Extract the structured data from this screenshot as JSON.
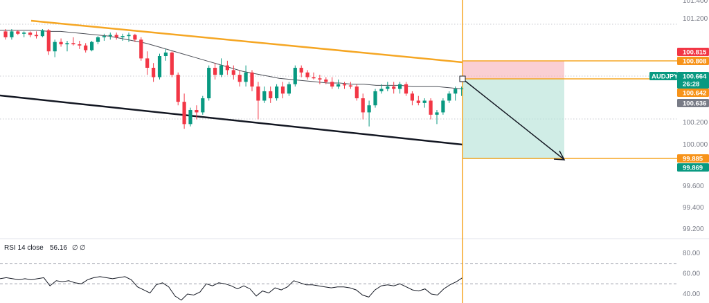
{
  "chart_data": [
    {
      "type": "candlestick",
      "symbol": "AUDJPY",
      "current_price": "100.664",
      "countdown": "26:28",
      "ylim": [
        99.0,
        101.4
      ],
      "y_ticks": [
        "101.400",
        "101.200",
        "100.200",
        "100.000",
        "99.600",
        "99.400",
        "99.200"
      ],
      "price_tags": [
        {
          "label": "100.815",
          "value": 100.815,
          "color": "#f23645"
        },
        {
          "label": "100.808",
          "value": 100.808,
          "color": "#f7931a"
        },
        {
          "label": "100.642",
          "value": 100.642,
          "color": "#f7931a"
        },
        {
          "label": "100.636",
          "value": 100.636,
          "color": "#787b86"
        },
        {
          "label": "99.885",
          "value": 99.885,
          "color": "#f7931a"
        },
        {
          "label": "99.869",
          "value": 99.869,
          "color": "#089981"
        }
      ],
      "candles_ohlc": [
        [
          101.15,
          101.17,
          101.08,
          101.1
        ],
        [
          101.1,
          101.17,
          101.08,
          101.15
        ],
        [
          101.15,
          101.16,
          101.12,
          101.13
        ],
        [
          101.13,
          101.15,
          101.1,
          101.14
        ],
        [
          101.14,
          101.15,
          101.1,
          101.12
        ],
        [
          101.12,
          101.15,
          101.09,
          101.11
        ],
        [
          101.11,
          101.17,
          101.1,
          101.16
        ],
        [
          101.16,
          101.17,
          100.95,
          100.98
        ],
        [
          100.98,
          101.08,
          100.93,
          101.06
        ],
        [
          101.06,
          101.09,
          101.02,
          101.04
        ],
        [
          101.04,
          101.07,
          100.98,
          101.05
        ],
        [
          101.05,
          101.1,
          101.03,
          101.04
        ],
        [
          101.04,
          101.07,
          101.0,
          101.03
        ],
        [
          101.03,
          101.05,
          100.97,
          100.99
        ],
        [
          100.99,
          101.07,
          100.98,
          101.06
        ],
        [
          101.06,
          101.11,
          101.04,
          101.1
        ],
        [
          101.1,
          101.13,
          101.07,
          101.11
        ],
        [
          101.11,
          101.14,
          101.08,
          101.12
        ],
        [
          101.12,
          101.14,
          101.08,
          101.1
        ],
        [
          101.1,
          101.13,
          101.07,
          101.11
        ],
        [
          101.11,
          101.14,
          101.06,
          101.12
        ],
        [
          101.12,
          101.13,
          101.06,
          101.08
        ],
        [
          101.08,
          101.1,
          100.9,
          100.92
        ],
        [
          100.92,
          100.98,
          100.78,
          100.84
        ],
        [
          100.84,
          100.88,
          100.72,
          100.76
        ],
        [
          100.76,
          100.96,
          100.74,
          100.94
        ],
        [
          100.94,
          101.0,
          100.9,
          100.97
        ],
        [
          100.97,
          100.98,
          100.76,
          100.78
        ],
        [
          100.78,
          100.8,
          100.52,
          100.55
        ],
        [
          100.55,
          100.62,
          100.32,
          100.36
        ],
        [
          100.36,
          100.5,
          100.34,
          100.48
        ],
        [
          100.48,
          100.52,
          100.4,
          100.46
        ],
        [
          100.46,
          100.6,
          100.44,
          100.58
        ],
        [
          100.58,
          100.86,
          100.56,
          100.84
        ],
        [
          100.84,
          100.88,
          100.74,
          100.78
        ],
        [
          100.78,
          100.92,
          100.76,
          100.86
        ],
        [
          100.86,
          100.9,
          100.78,
          100.82
        ],
        [
          100.82,
          100.86,
          100.74,
          100.78
        ],
        [
          100.78,
          100.82,
          100.68,
          100.72
        ],
        [
          100.72,
          100.86,
          100.68,
          100.8
        ],
        [
          100.8,
          100.82,
          100.64,
          100.68
        ],
        [
          100.68,
          100.72,
          100.4,
          100.56
        ],
        [
          100.56,
          100.68,
          100.54,
          100.64
        ],
        [
          100.64,
          100.68,
          100.54,
          100.58
        ],
        [
          100.58,
          100.7,
          100.56,
          100.68
        ],
        [
          100.68,
          100.72,
          100.58,
          100.62
        ],
        [
          100.62,
          100.72,
          100.6,
          100.7
        ],
        [
          100.7,
          100.86,
          100.68,
          100.84
        ],
        [
          100.84,
          100.86,
          100.76,
          100.8
        ],
        [
          100.8,
          100.82,
          100.74,
          100.76
        ],
        [
          100.76,
          100.8,
          100.74,
          100.75
        ],
        [
          100.75,
          100.78,
          100.7,
          100.74
        ],
        [
          100.74,
          100.76,
          100.7,
          100.72
        ],
        [
          100.72,
          100.76,
          100.66,
          100.68
        ],
        [
          100.68,
          100.74,
          100.66,
          100.7
        ],
        [
          100.7,
          100.72,
          100.66,
          100.69
        ],
        [
          100.69,
          100.72,
          100.66,
          100.68
        ],
        [
          100.68,
          100.7,
          100.56,
          100.58
        ],
        [
          100.58,
          100.62,
          100.4,
          100.46
        ],
        [
          100.46,
          100.56,
          100.34,
          100.52
        ],
        [
          100.52,
          100.66,
          100.5,
          100.64
        ],
        [
          100.64,
          100.7,
          100.62,
          100.66
        ],
        [
          100.66,
          100.72,
          100.64,
          100.68
        ],
        [
          100.68,
          100.72,
          100.62,
          100.66
        ],
        [
          100.66,
          100.72,
          100.62,
          100.7
        ],
        [
          100.7,
          100.72,
          100.6,
          100.62
        ],
        [
          100.62,
          100.64,
          100.52,
          100.56
        ],
        [
          100.56,
          100.6,
          100.52,
          100.54
        ],
        [
          100.54,
          100.58,
          100.5,
          100.56
        ],
        [
          100.56,
          100.58,
          100.4,
          100.44
        ],
        [
          100.44,
          100.48,
          100.36,
          100.46
        ],
        [
          100.46,
          100.58,
          100.44,
          100.56
        ],
        [
          100.56,
          100.64,
          100.54,
          100.62
        ],
        [
          100.62,
          100.68,
          100.56,
          100.66
        ],
        [
          100.66,
          100.68,
          100.6,
          100.664
        ]
      ],
      "moving_average": [
        101.16,
        101.16,
        101.16,
        101.16,
        101.15,
        101.15,
        101.14,
        101.13,
        101.12,
        101.11,
        101.09,
        101.07,
        101.05,
        101.02,
        100.99,
        100.96,
        100.93,
        100.9,
        100.87,
        100.84,
        100.81,
        100.79,
        100.77,
        100.75,
        100.74,
        100.73,
        100.72,
        100.71,
        100.71,
        100.7,
        100.7,
        100.69,
        100.69,
        100.69,
        100.68,
        100.68,
        100.68,
        100.67,
        100.66
      ],
      "rsi": {
        "label": "RSI 14 close",
        "value": "56.16",
        "placeholders": [
          "∅",
          "∅"
        ],
        "ylim": [
          40,
          80
        ],
        "y_ticks": [
          "80.00",
          "60.00",
          "40.00"
        ],
        "upper_band": 70,
        "lower_band": 50,
        "values": [
          55,
          56,
          55,
          54,
          55,
          54,
          55,
          56,
          48,
          53,
          52,
          53,
          51,
          50,
          54,
          56,
          57,
          56,
          55,
          56,
          57,
          54,
          47,
          44,
          41,
          49,
          51,
          47,
          38,
          34,
          40,
          39,
          42,
          50,
          48,
          51,
          50,
          48,
          45,
          48,
          45,
          38,
          43,
          41,
          46,
          44,
          47,
          53,
          51,
          49,
          49,
          48,
          47,
          46,
          47,
          47,
          46,
          44,
          39,
          37,
          44,
          48,
          49,
          48,
          50,
          47,
          44,
          43,
          45,
          40,
          39,
          45,
          49,
          52,
          56
        ]
      }
    }
  ]
}
